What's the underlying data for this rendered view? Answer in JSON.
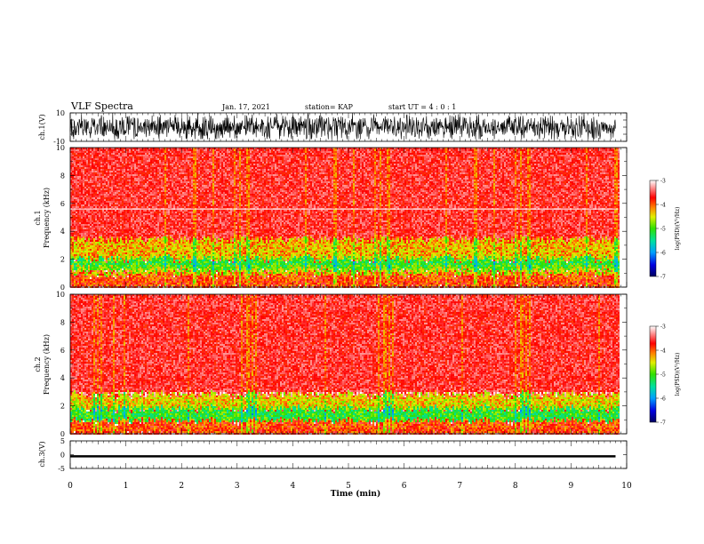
{
  "header": {
    "title": "VLF Spectra",
    "date": "Jan. 17, 2021",
    "station": "station= KAP",
    "start": "start  UT =   4 : 0  : 1"
  },
  "chart_data": [
    {
      "type": "line",
      "id": "ch1-waveform",
      "ylabel": "ch.1(V)",
      "ylim": [
        -10,
        10
      ],
      "yticks": [
        "10",
        "-10"
      ],
      "xlim": [
        0,
        10
      ],
      "description_values": "dense noise waveform filling roughly -8 V to +10 V across 0–9.8 min"
    },
    {
      "type": "heatmap",
      "id": "ch1-spectrogram",
      "ylabel": "Frequency (kHz)",
      "channel_label": "ch.1",
      "ylim": [
        0,
        10
      ],
      "yticks": [
        "0",
        "2",
        "4",
        "6",
        "8",
        "10"
      ],
      "xlim": [
        0,
        10
      ],
      "data_end_x": 9.85,
      "bands": [
        {
          "from_khz": 0.0,
          "to_khz": 0.9,
          "level": -3.9
        },
        {
          "from_khz": 0.9,
          "to_khz": 1.3,
          "level": -4.6
        },
        {
          "from_khz": 1.3,
          "to_khz": 2.0,
          "level": -5.1
        },
        {
          "from_khz": 2.0,
          "to_khz": 3.4,
          "level": -4.3
        },
        {
          "from_khz": 3.4,
          "to_khz": 10.0,
          "level": -3.4
        }
      ],
      "white_line_khz": 5.6,
      "colorbar": {
        "label": "log(PSD)(V²/Hz)",
        "range": [
          -7,
          -3
        ],
        "ticks": [
          "-3",
          "-4",
          "-5",
          "-6",
          "-7"
        ]
      }
    },
    {
      "type": "heatmap",
      "id": "ch2-spectrogram",
      "ylabel": "Frequency (kHz)",
      "channel_label": "ch.2",
      "ylim": [
        0,
        10
      ],
      "yticks": [
        "0",
        "2",
        "4",
        "6",
        "8",
        "10"
      ],
      "xlim": [
        0,
        10
      ],
      "data_end_x": 9.85,
      "bands": [
        {
          "from_khz": 0.0,
          "to_khz": 0.9,
          "level": -3.9
        },
        {
          "from_khz": 0.9,
          "to_khz": 1.8,
          "level": -5.1
        },
        {
          "from_khz": 1.8,
          "to_khz": 2.8,
          "level": -4.4
        },
        {
          "from_khz": 2.8,
          "to_khz": 10.0,
          "level": -3.4
        }
      ],
      "colorbar": {
        "label": "log(PSD)(V²/Hz)",
        "range": [
          -7,
          -3
        ],
        "ticks": [
          "-3",
          "-4",
          "-5",
          "-6",
          "-7"
        ]
      }
    },
    {
      "type": "line",
      "id": "ch3-waveform",
      "ylabel": "ch.3(V)",
      "ylim": [
        -5,
        5
      ],
      "yticks": [
        "5",
        "0",
        "-5"
      ],
      "xlim": [
        0,
        10
      ],
      "band_volts": [
        -1.0,
        -0.2
      ],
      "xlabel": "Time (min)",
      "xticks": [
        "0",
        "1",
        "2",
        "3",
        "4",
        "5",
        "6",
        "7",
        "8",
        "9",
        "10"
      ]
    }
  ]
}
